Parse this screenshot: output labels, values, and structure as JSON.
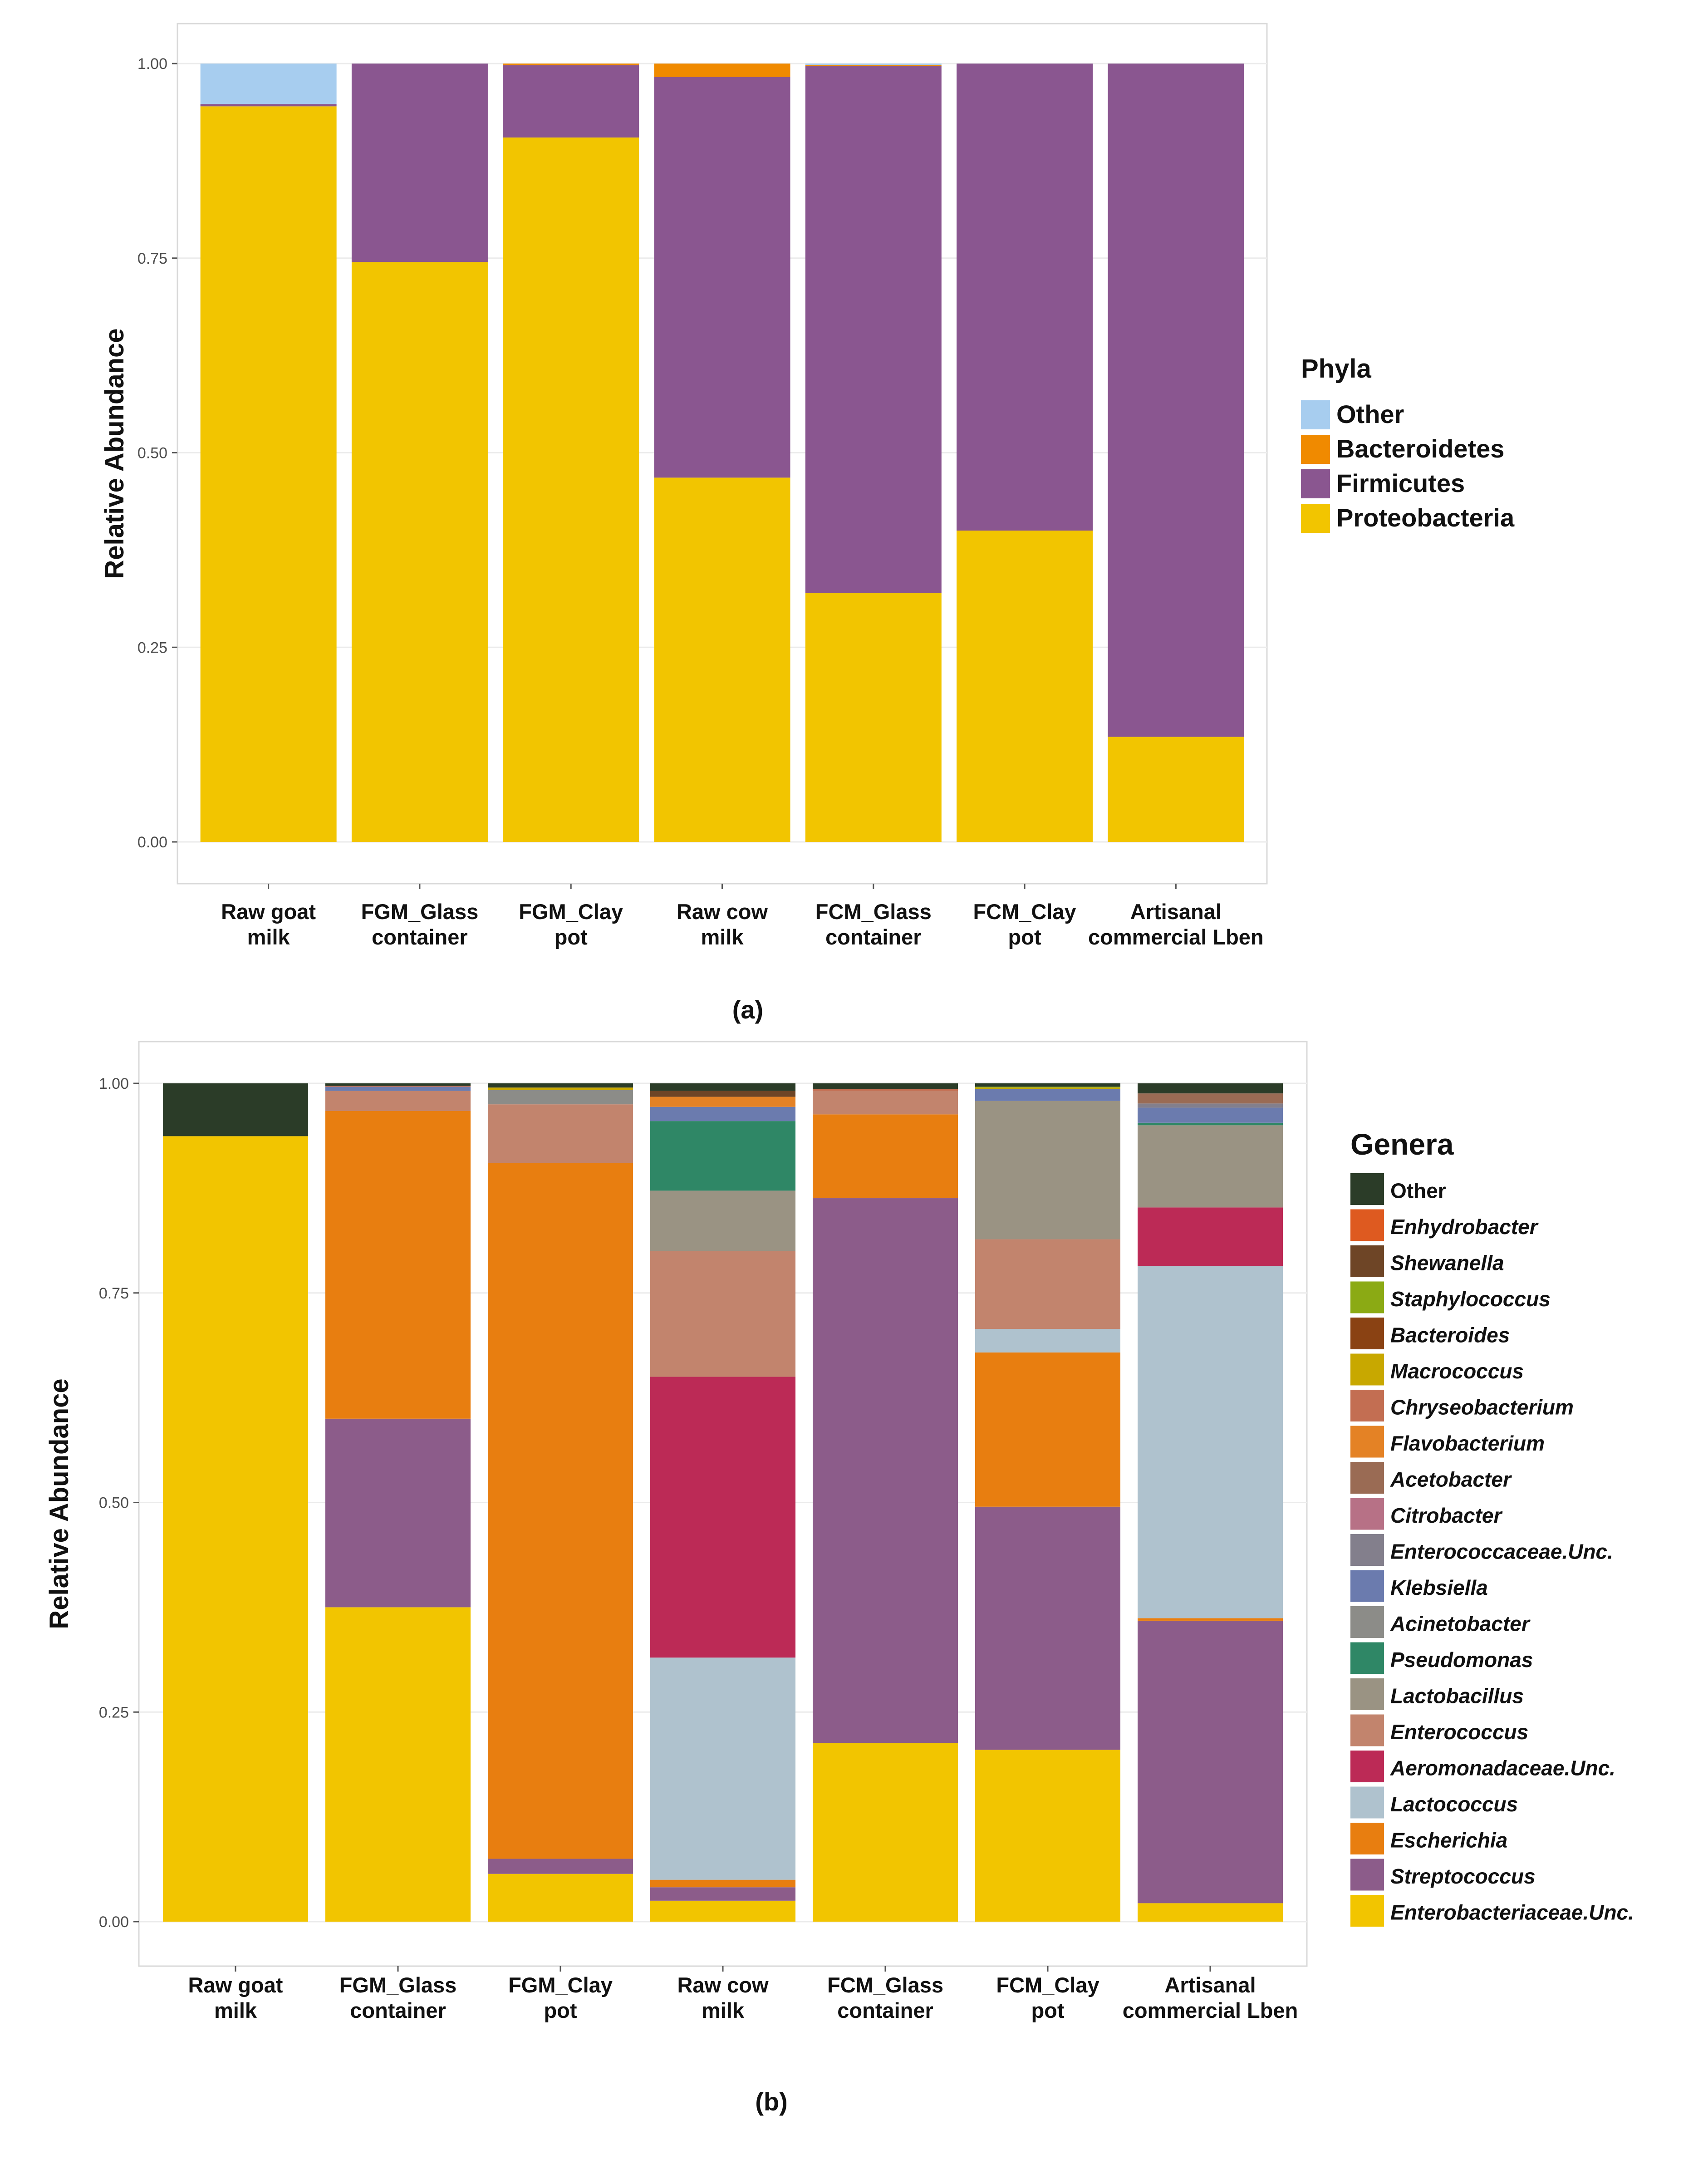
{
  "chart_data": [
    {
      "type": "bar",
      "stacked": true,
      "panel_label": "(a)",
      "xlabel": "",
      "ylabel": "Relative Abundance",
      "ylim": [
        0,
        1
      ],
      "yticks": [
        "0.00",
        "0.25",
        "0.50",
        "0.75",
        "1.00"
      ],
      "categories": [
        [
          "Raw goat",
          "milk"
        ],
        [
          "FGM_Glass",
          "container"
        ],
        [
          "FGM_Clay",
          "pot"
        ],
        [
          "Raw cow",
          "milk"
        ],
        [
          "FCM_Glass",
          "container"
        ],
        [
          "FCM_Clay",
          "pot"
        ],
        [
          "Artisanal",
          "commercial Lben"
        ]
      ],
      "legend_title": "Phyla",
      "legend_position": "right",
      "series": [
        {
          "name": "Proteobacteria",
          "color": "#F2C500",
          "values": [
            0.945,
            0.745,
            0.905,
            0.468,
            0.32,
            0.4,
            0.135
          ]
        },
        {
          "name": "Firmicutes",
          "color": "#8A5690",
          "values": [
            0.003,
            0.255,
            0.093,
            0.515,
            0.677,
            0.6,
            0.865
          ]
        },
        {
          "name": "Bacteroidetes",
          "color": "#F08A00",
          "values": [
            0.0,
            0.0,
            0.002,
            0.017,
            0.001,
            0.0,
            0.0
          ]
        },
        {
          "name": "Other",
          "color": "#A7CDEF",
          "values": [
            0.052,
            0.0,
            0.0,
            0.0,
            0.002,
            0.0,
            0.0
          ]
        }
      ]
    },
    {
      "type": "bar",
      "stacked": true,
      "panel_label": "(b)",
      "xlabel": "",
      "ylabel": "Relative Abundance",
      "ylim": [
        0,
        1
      ],
      "yticks": [
        "0.00",
        "0.25",
        "0.50",
        "0.75",
        "1.00"
      ],
      "categories": [
        [
          "Raw goat",
          "milk"
        ],
        [
          "FGM_Glass",
          "container"
        ],
        [
          "FGM_Clay",
          "pot"
        ],
        [
          "Raw cow",
          "milk"
        ],
        [
          "FCM_Glass",
          "container"
        ],
        [
          "FCM_Clay",
          "pot"
        ],
        [
          "Artisanal",
          "commercial Lben"
        ]
      ],
      "legend_title": "Genera",
      "legend_position": "right",
      "series": [
        {
          "name": "Enterobacteriaceae.Unc.",
          "color": "#F2C500",
          "values": [
            0.937,
            0.375,
            0.057,
            0.025,
            0.213,
            0.205,
            0.022
          ]
        },
        {
          "name": "Streptococcus",
          "color": "#8C5C8A",
          "values": [
            0.0,
            0.225,
            0.018,
            0.016,
            0.65,
            0.29,
            0.337
          ]
        },
        {
          "name": "Escherichia",
          "color": "#E87E10",
          "values": [
            0.0,
            0.367,
            0.83,
            0.009,
            0.1,
            0.184,
            0.003
          ]
        },
        {
          "name": "Lactococcus",
          "color": "#AFC2CE",
          "values": [
            0.0,
            0.0,
            0.0,
            0.265,
            0.0,
            0.028,
            0.42
          ]
        },
        {
          "name": "Aeromonadaceae.Unc.",
          "color": "#BC2A56",
          "values": [
            0.0,
            0.0,
            0.0,
            0.335,
            0.0,
            0.0,
            0.07
          ]
        },
        {
          "name": "Enterococcus",
          "color": "#C2846D",
          "values": [
            0.0,
            0.024,
            0.07,
            0.15,
            0.028,
            0.107,
            0.0
          ]
        },
        {
          "name": "Lactobacillus",
          "color": "#9A9383",
          "values": [
            0.0,
            0.0,
            0.0,
            0.072,
            0.0,
            0.165,
            0.098
          ]
        },
        {
          "name": "Pseudomonas",
          "color": "#2F8766",
          "values": [
            0.0,
            0.0,
            0.0,
            0.083,
            0.0,
            0.0,
            0.003
          ]
        },
        {
          "name": "Acinetobacter",
          "color": "#8C8C88",
          "values": [
            0.0,
            0.0,
            0.017,
            0.0,
            0.0,
            0.0,
            0.0
          ]
        },
        {
          "name": "Klebsiella",
          "color": "#6B7BAE",
          "values": [
            0.0,
            0.005,
            0.0,
            0.017,
            0.0,
            0.014,
            0.018
          ]
        },
        {
          "name": "Enterococcaceae.Unc.",
          "color": "#837F8C",
          "values": [
            0.0,
            0.0,
            0.0,
            0.0,
            0.0,
            0.0,
            0.005
          ]
        },
        {
          "name": "Citrobacter",
          "color": "#B77186",
          "values": [
            0.0,
            0.0,
            0.0,
            0.0,
            0.0,
            0.0,
            0.0
          ]
        },
        {
          "name": "Acetobacter",
          "color": "#9A6B54",
          "values": [
            0.0,
            0.0,
            0.0,
            0.0,
            0.0,
            0.0,
            0.012
          ]
        },
        {
          "name": "Flavobacterium",
          "color": "#E48225",
          "values": [
            0.0,
            0.0,
            0.0,
            0.012,
            0.0,
            0.0,
            0.0
          ]
        },
        {
          "name": "Chryseobacterium",
          "color": "#C36E52",
          "values": [
            0.0,
            0.001,
            0.0,
            0.0,
            0.002,
            0.0,
            0.0
          ]
        },
        {
          "name": "Macrococcus",
          "color": "#C8A800",
          "values": [
            0.0,
            0.0,
            0.003,
            0.0,
            0.0,
            0.002,
            0.0
          ]
        },
        {
          "name": "Bacteroides",
          "color": "#8A4213",
          "values": [
            0.0,
            0.0,
            0.0,
            0.0,
            0.0,
            0.0,
            0.0
          ]
        },
        {
          "name": "Staphylococcus",
          "color": "#8BAA14",
          "values": [
            0.0,
            0.0,
            0.0,
            0.0,
            0.0,
            0.001,
            0.0
          ]
        },
        {
          "name": "Shewanella",
          "color": "#6E4526",
          "values": [
            0.0,
            0.0,
            0.0,
            0.007,
            0.0,
            0.0,
            0.0
          ]
        },
        {
          "name": "Enhydrobacter",
          "color": "#DE5A20",
          "values": [
            0.0,
            0.0,
            0.0,
            0.0,
            0.0,
            0.0,
            0.0
          ]
        },
        {
          "name": "Other",
          "color": "#2B3C28",
          "values": [
            0.063,
            0.003,
            0.005,
            0.009,
            0.007,
            0.004,
            0.012
          ]
        }
      ]
    }
  ]
}
